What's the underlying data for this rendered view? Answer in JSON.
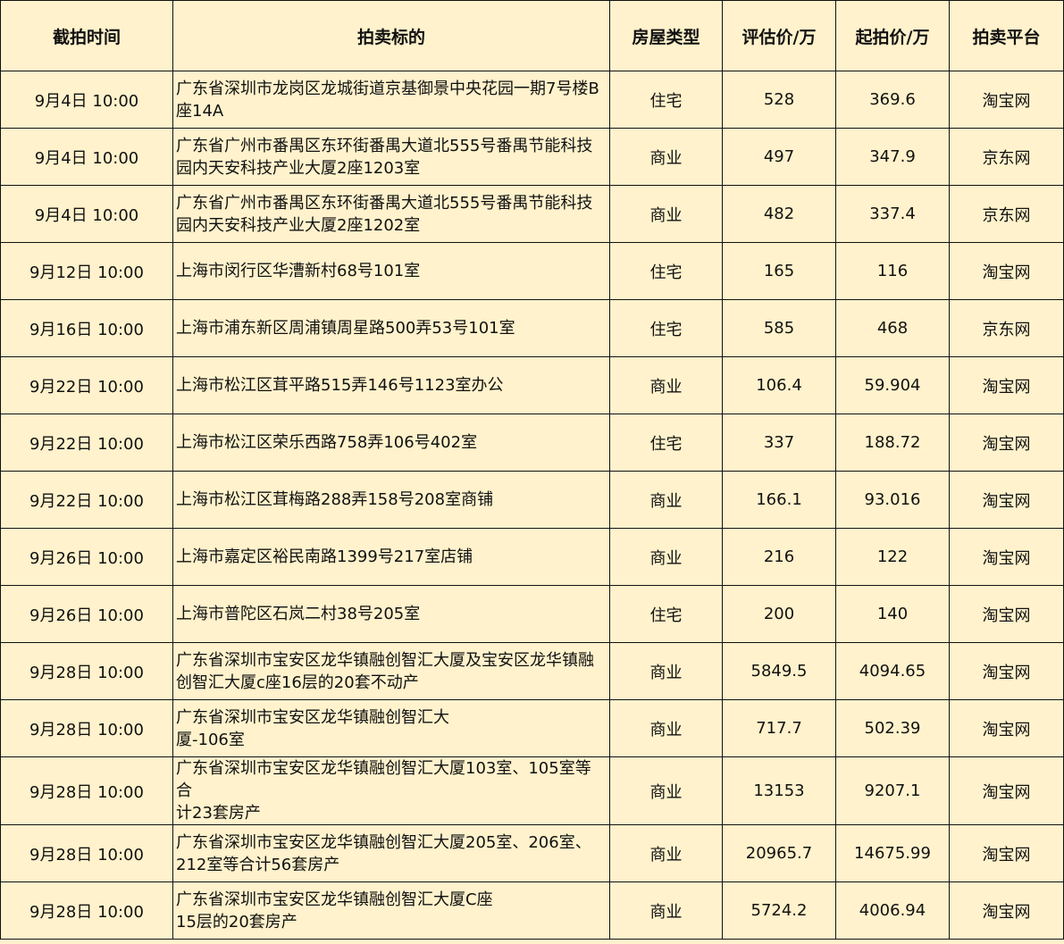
{
  "headers": [
    "截拍时间",
    "拍卖标的",
    "房屋类型",
    "评估价/万",
    "起拍价/万",
    "拍卖平台"
  ],
  "rows": [
    {
      "time": "9月4日 10:00",
      "subject": "广东省深圳市龙岗区龙城街道京基御景中央花园一期7号楼B\n座14A",
      "type": "住宅",
      "appraisal": "528",
      "start": "369.6",
      "platform": "淘宝网"
    },
    {
      "time": "9月4日 10:00",
      "subject": "广东省广州市番禺区东环街番禺大道北555号番禺节能科技\n园内天安科技产业大厦2座1203室",
      "type": "商业",
      "appraisal": "497",
      "start": "347.9",
      "platform": "京东网"
    },
    {
      "time": "9月4日 10:00",
      "subject": "广东省广州市番禺区东环街番禺大道北555号番禺节能科技\n园内天安科技产业大厦2座1202室",
      "type": "商业",
      "appraisal": "482",
      "start": "337.4",
      "platform": "京东网"
    },
    {
      "time": "9月12日 10:00",
      "subject": "上海市闵行区华漕新村68号101室",
      "type": "住宅",
      "appraisal": "165",
      "start": "116",
      "platform": "淘宝网"
    },
    {
      "time": "9月16日 10:00",
      "subject": "上海市浦东新区周浦镇周星路500弄53号101室",
      "type": "住宅",
      "appraisal": "585",
      "start": "468",
      "platform": "京东网"
    },
    {
      "time": "9月22日 10:00",
      "subject": "上海市松江区茸平路515弄146号1123室办公",
      "type": "商业",
      "appraisal": "106.4",
      "start": "59.904",
      "platform": "淘宝网"
    },
    {
      "time": "9月22日 10:00",
      "subject": "上海市松江区荣乐西路758弄106号402室",
      "type": "住宅",
      "appraisal": "337",
      "start": "188.72",
      "platform": "淘宝网"
    },
    {
      "time": "9月22日 10:00",
      "subject": "上海市松江区茸梅路288弄158号208室商铺",
      "type": "商业",
      "appraisal": "166.1",
      "start": "93.016",
      "platform": "淘宝网"
    },
    {
      "time": "9月26日 10:00",
      "subject": "上海市嘉定区裕民南路1399号217室店铺",
      "type": "商业",
      "appraisal": "216",
      "start": "122",
      "platform": "淘宝网"
    },
    {
      "time": "9月26日 10:00",
      "subject": "上海市普陀区石岚二村38号205室",
      "type": "住宅",
      "appraisal": "200",
      "start": "140",
      "platform": "淘宝网"
    },
    {
      "time": "9月28日 10:00",
      "subject": "广东省深圳市宝安区龙华镇融创智汇大厦及宝安区龙华镇融\n创智汇大厦c座16层的20套不动产",
      "type": "商业",
      "appraisal": "5849.5",
      "start": "4094.65",
      "platform": "淘宝网"
    },
    {
      "time": "9月28日 10:00",
      "subject": "广东省深圳市宝安区龙华镇融创智汇大\n厦-106室",
      "type": "商业",
      "appraisal": "717.7",
      "start": "502.39",
      "platform": "淘宝网"
    },
    {
      "time": "9月28日 10:00",
      "subject": "广东省深圳市宝安区龙华镇融创智汇大厦103室、105室等合\n计23套房产",
      "type": "商业",
      "appraisal": "13153",
      "start": "9207.1",
      "platform": "淘宝网"
    },
    {
      "time": "9月28日 10:00",
      "subject": "广东省深圳市宝安区龙华镇融创智汇大厦205室、206室、\n212室等合计56套房产",
      "type": "商业",
      "appraisal": "20965.7",
      "start": "14675.99",
      "platform": "淘宝网"
    },
    {
      "time": "9月28日 10:00",
      "subject": "广东省深圳市宝安区龙华镇融创智汇大厦C座\n15层的20套房产",
      "type": "商业",
      "appraisal": "5724.2",
      "start": "4006.94",
      "platform": "淘宝网"
    }
  ]
}
